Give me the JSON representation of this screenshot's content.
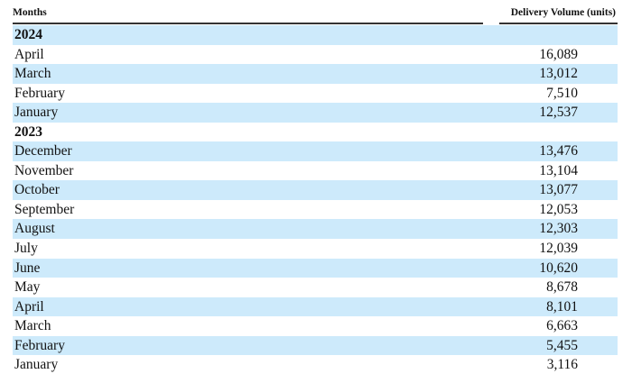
{
  "header": {
    "months": "Months",
    "volume": "Delivery Volume (units)"
  },
  "row_shading_color": "#cdeafb",
  "rows": [
    {
      "label": "2024",
      "value": "",
      "year": true
    },
    {
      "label": "April",
      "value": "16,089"
    },
    {
      "label": "March",
      "value": "13,012"
    },
    {
      "label": "February",
      "value": "7,510"
    },
    {
      "label": "January",
      "value": "12,537"
    },
    {
      "label": "2023",
      "value": "",
      "year": true
    },
    {
      "label": "December",
      "value": "13,476"
    },
    {
      "label": "November",
      "value": "13,104"
    },
    {
      "label": "October",
      "value": "13,077"
    },
    {
      "label": "September",
      "value": "12,053"
    },
    {
      "label": "August",
      "value": "12,303"
    },
    {
      "label": "July",
      "value": "12,039"
    },
    {
      "label": "June",
      "value": "10,620"
    },
    {
      "label": "May",
      "value": "8,678"
    },
    {
      "label": "April",
      "value": "8,101"
    },
    {
      "label": "March",
      "value": "6,663"
    },
    {
      "label": "February",
      "value": "5,455"
    },
    {
      "label": "January",
      "value": "3,116"
    }
  ]
}
